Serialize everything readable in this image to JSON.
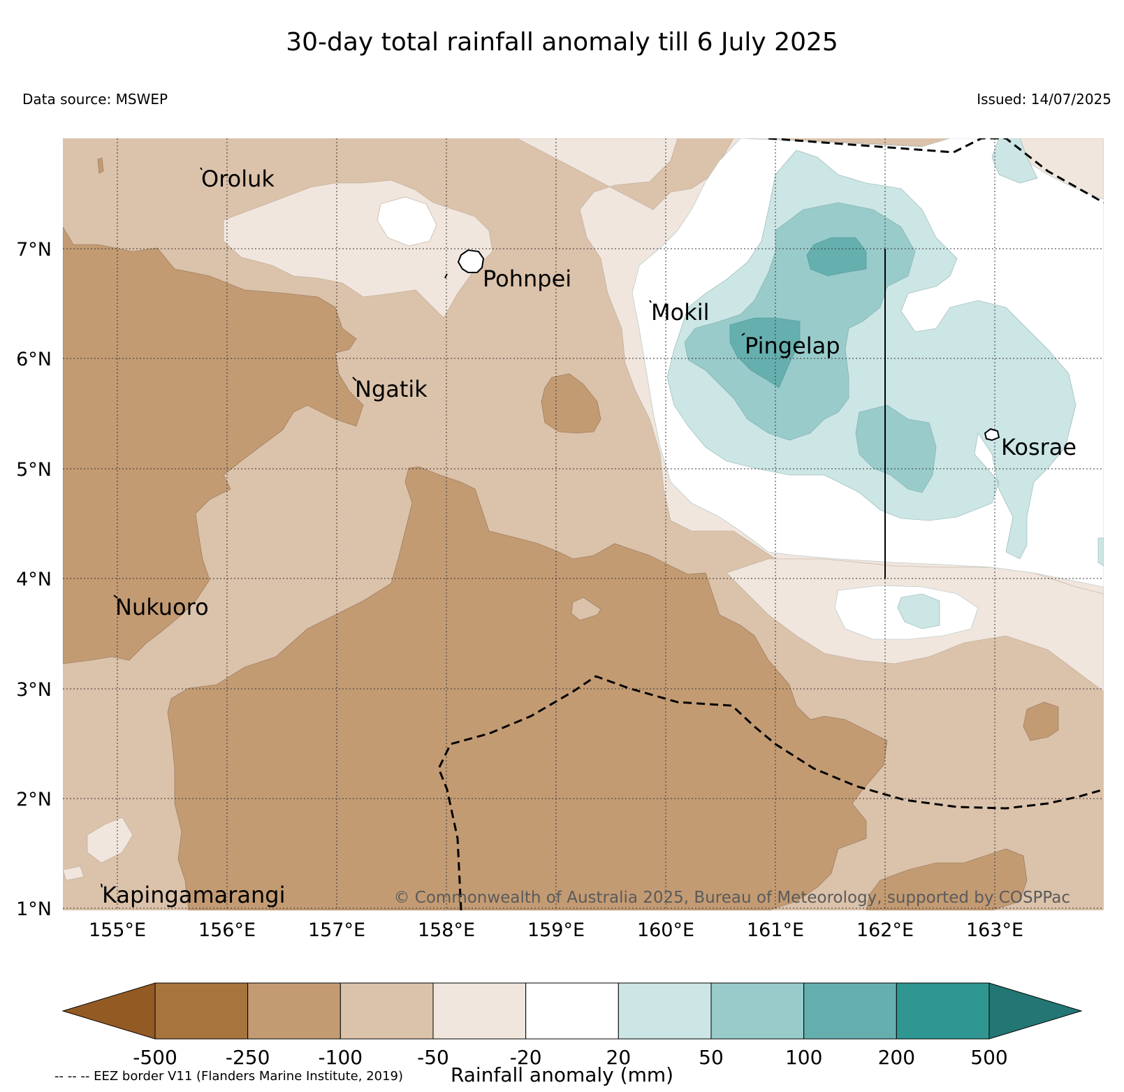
{
  "title": "30-day total rainfall anomaly till 6 July 2025",
  "data_source": "Data source: MSWEP",
  "issued": "Issued: 14/07/2025",
  "copyright": "© Commonwealth of Australia 2025, Bureau of Meteorology, supported by COSPPac",
  "eez_note": "-- -- -- EEZ border V11 (Flanders Marine Institute, 2019)",
  "colorbar": {
    "label": "Rainfall anomaly (mm)",
    "ticks": [
      "-500",
      "-250",
      "-100",
      "-50",
      "-20",
      "20",
      "50",
      "100",
      "200",
      "500"
    ],
    "colors": [
      "#945a24",
      "#a8743e",
      "#c39b73",
      "#dbc2aa",
      "#f0e6dd",
      "#ffffff",
      "#cce5e5",
      "#99cbcb",
      "#66afaf",
      "#2f9692",
      "#237673"
    ]
  },
  "map": {
    "lon_labels": [
      "155°E",
      "156°E",
      "157°E",
      "158°E",
      "159°E",
      "160°E",
      "161°E",
      "162°E",
      "163°E"
    ],
    "lat_labels": [
      "7°N",
      "6°N",
      "5°N",
      "4°N",
      "3°N",
      "2°N",
      "1°N"
    ],
    "places": [
      "Oroluk",
      "Pohnpei",
      "Mokil",
      "Pingelap",
      "Ngatik",
      "Kosrae",
      "Nukuoro",
      "Kapingamarangi"
    ]
  }
}
